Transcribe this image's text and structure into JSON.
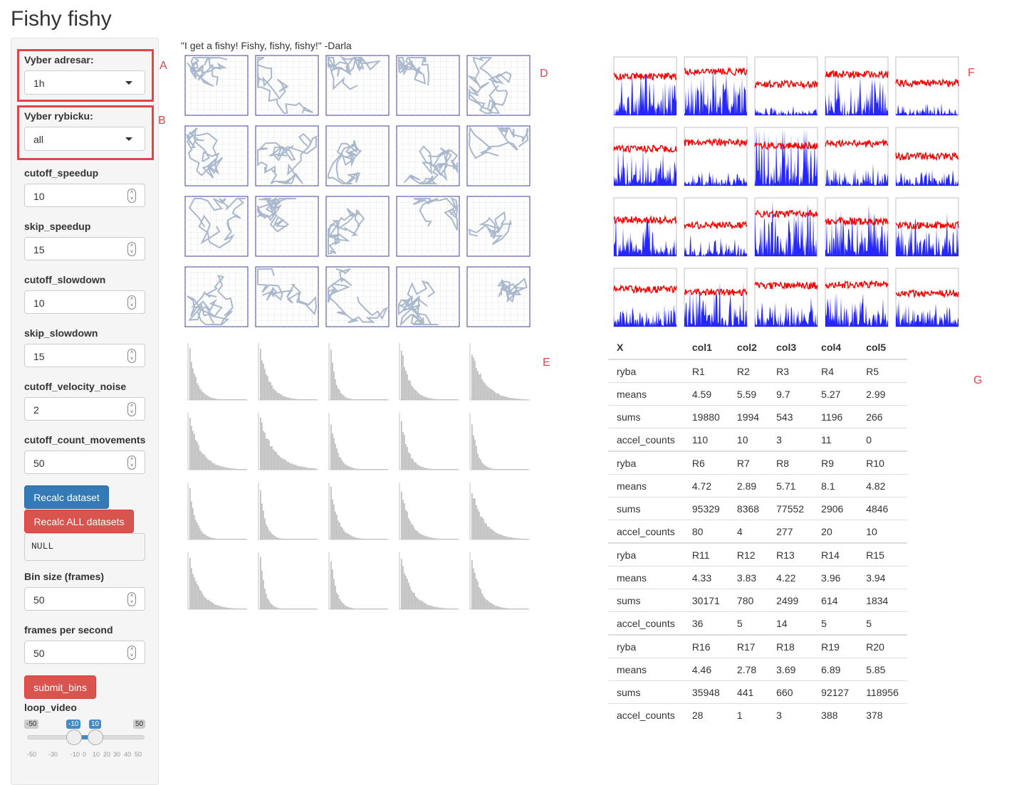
{
  "app_title": "Fishy fishy",
  "quote": "\"I get a fishy! Fishy, fishy, fishy!\" -Darla",
  "markers": {
    "a": "A",
    "b": "B",
    "d": "D",
    "e": "E",
    "f": "F",
    "g": "G"
  },
  "sidebar": {
    "dir_label": "Vyber adresar:",
    "dir_value": "1h",
    "fish_label": "Vyber rybicku:",
    "fish_value": "all",
    "inputs": [
      {
        "label": "cutoff_speedup",
        "value": "10"
      },
      {
        "label": "skip_speedup",
        "value": "15"
      },
      {
        "label": "cutoff_slowdown",
        "value": "10"
      },
      {
        "label": "skip_slowdown",
        "value": "15"
      },
      {
        "label": "cutoff_velocity_noise",
        "value": "2"
      },
      {
        "label": "cutoff_count_movements",
        "value": "50"
      }
    ],
    "recalc_label": "Recalc dataset",
    "recalc_all_label": "Recalc ALL datasets",
    "output_text": "NULL",
    "bin_label": "Bin size (frames)",
    "bin_value": "50",
    "fps_label": "frames per second",
    "fps_value": "50",
    "submit_label": "submit_bins",
    "loop_label": "loop_video",
    "slider": {
      "min": "-50",
      "max": "50",
      "from": "-10",
      "to": "10",
      "ticks": [
        "-50",
        "-30",
        "-10",
        "0",
        "10",
        "20",
        "30",
        "40",
        "50"
      ]
    }
  },
  "table": {
    "headers": [
      "X",
      "col1",
      "col2",
      "col3",
      "col4",
      "col5"
    ],
    "groups": [
      [
        [
          "ryba",
          "R1",
          "R2",
          "R3",
          "R4",
          "R5"
        ],
        [
          "means",
          "4.59",
          "5.59",
          "9.7",
          "5.27",
          "2.99"
        ],
        [
          "sums",
          "19880",
          "1994",
          "543",
          "1196",
          "266"
        ],
        [
          "accel_counts",
          "110",
          "10",
          "3",
          "11",
          "0"
        ]
      ],
      [
        [
          "ryba",
          "R6",
          "R7",
          "R8",
          "R9",
          "R10"
        ],
        [
          "means",
          "4.72",
          "2.89",
          "5.71",
          "8.1",
          "4.82"
        ],
        [
          "sums",
          "95329",
          "8368",
          "77552",
          "2906",
          "4846"
        ],
        [
          "accel_counts",
          "80",
          "4",
          "277",
          "20",
          "10"
        ]
      ],
      [
        [
          "ryba",
          "R11",
          "R12",
          "R13",
          "R14",
          "R15"
        ],
        [
          "means",
          "4.33",
          "3.83",
          "4.22",
          "3.96",
          "3.94"
        ],
        [
          "sums",
          "30171",
          "780",
          "2499",
          "614",
          "1834"
        ],
        [
          "accel_counts",
          "36",
          "5",
          "14",
          "5",
          "5"
        ]
      ],
      [
        [
          "ryba",
          "R16",
          "R17",
          "R18",
          "R19",
          "R20"
        ],
        [
          "means",
          "4.46",
          "2.78",
          "3.69",
          "6.89",
          "5.85"
        ],
        [
          "sums",
          "35948",
          "441",
          "660",
          "92127",
          "118956"
        ],
        [
          "accel_counts",
          "28",
          "1",
          "3",
          "388",
          "378"
        ]
      ]
    ]
  },
  "colors": {
    "track": "#a9b8cc",
    "frame": "#3b3b9e",
    "hist": "#bdbdbd",
    "red": "#ff0000",
    "blue": "#0000ff"
  }
}
